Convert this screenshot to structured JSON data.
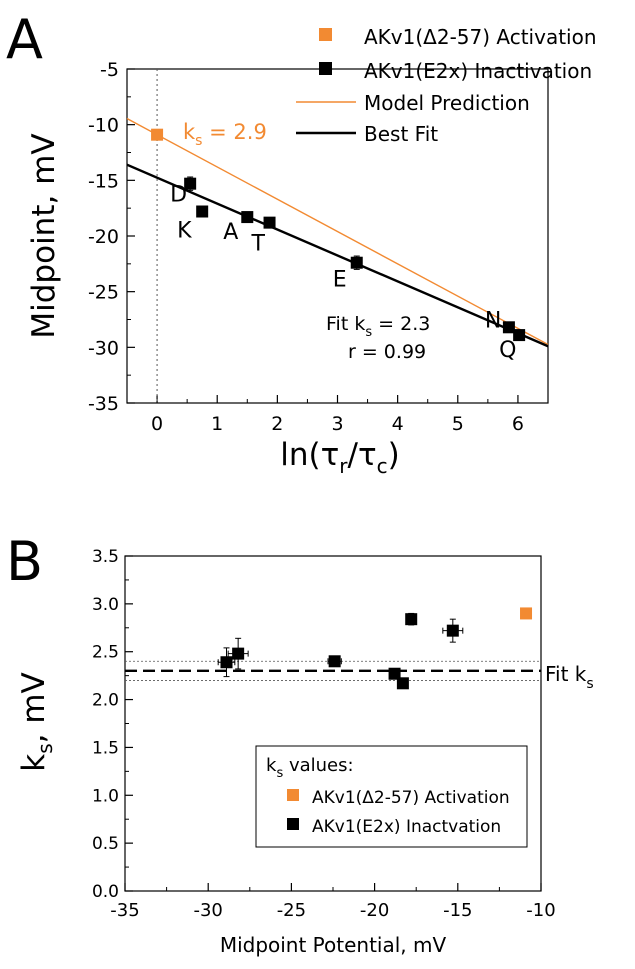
{
  "colors": {
    "activation": "#f28a32",
    "inactivation": "#000000",
    "model": "#f28a32",
    "fit": "#000000"
  },
  "chart_data": [
    {
      "panel": "A",
      "type": "scatter",
      "xlabel_main": "ln(",
      "xlabel_tau1": "τ",
      "xlabel_sub1": "r",
      "xlabel_slash": "/",
      "xlabel_tau2": "τ",
      "xlabel_sub2": "c",
      "xlabel_close": ")",
      "ylabel": "Midpoint, mV",
      "xlim": [
        -0.5,
        6.5
      ],
      "ylim": [
        -35,
        -5
      ],
      "xticks": [
        0,
        1,
        2,
        3,
        4,
        5,
        6
      ],
      "yticks": [
        -35,
        -30,
        -25,
        -20,
        -15,
        -10,
        -5
      ],
      "legend": [
        {
          "label": "AKv1(Δ2-57) Activation",
          "kind": "square",
          "color": "#f28a32"
        },
        {
          "label": "AKv1(E2x) Inactivation",
          "kind": "square",
          "color": "#000000"
        },
        {
          "label": "Model Prediction",
          "kind": "line",
          "color": "#f28a32"
        },
        {
          "label": "Best Fit",
          "kind": "line",
          "color": "#000000"
        }
      ],
      "vline_x": 0,
      "series": [
        {
          "name": "AKv1(Δ2-57) Activation",
          "color": "#f28a32",
          "points": [
            {
              "x": 0,
              "y": -10.9,
              "label": ""
            }
          ]
        },
        {
          "name": "AKv1(E2x) Inactivation",
          "color": "#000000",
          "points": [
            {
              "x": 0.55,
              "y": -15.3,
              "yerr": 0.6,
              "label": "D"
            },
            {
              "x": 0.75,
              "y": -17.8,
              "yerr": 0,
              "label": "K"
            },
            {
              "x": 1.5,
              "y": -18.3,
              "yerr": 0.3,
              "label": "A"
            },
            {
              "x": 1.87,
              "y": -18.8,
              "yerr": 0.3,
              "label": "T"
            },
            {
              "x": 3.32,
              "y": -22.4,
              "yerr": 0.6,
              "label": "E"
            },
            {
              "x": 5.85,
              "y": -28.2,
              "yerr": 0.4,
              "label": "N"
            },
            {
              "x": 6.02,
              "y": -28.9,
              "yerr": 0.3,
              "label": "Q"
            }
          ]
        }
      ],
      "lines": [
        {
          "name": "Model Prediction",
          "color": "#f28a32",
          "x": [
            -0.5,
            6.5
          ],
          "y": [
            -9.45,
            -29.75
          ],
          "width": 1.4
        },
        {
          "name": "Best Fit",
          "color": "#000000",
          "x": [
            -0.5,
            6.5
          ],
          "y": [
            -13.6,
            -29.9
          ],
          "width": 2.4
        }
      ],
      "annotations": {
        "ks_main": "k",
        "ks_sub": "s",
        "ks_value": " = 2.9",
        "fit_main": "Fit k",
        "fit_sub": "s",
        "fit_value": " = 2.3",
        "r_text": "r = 0.99"
      }
    },
    {
      "panel": "B",
      "type": "scatter",
      "xlabel": "Midpoint Potential, mV",
      "ylabel_main": "k",
      "ylabel_sub": "s",
      "ylabel_rest": ", mV",
      "xlim": [
        -35,
        -10
      ],
      "ylim": [
        0.0,
        3.5
      ],
      "xticks": [
        -35,
        -30,
        -25,
        -20,
        -15,
        -10
      ],
      "yticks": [
        0.0,
        0.5,
        1.0,
        1.5,
        2.0,
        2.5,
        3.0,
        3.5
      ],
      "ytick_labels": [
        "0.0",
        "0.5",
        "1.0",
        "1.5",
        "2.0",
        "2.5",
        "3.0",
        "3.5"
      ],
      "fit_ks": 2.3,
      "fit_band": [
        2.2,
        2.4
      ],
      "fit_label_main": "Fit k",
      "fit_label_sub": "s",
      "legend_title_main": "k",
      "legend_title_sub": "s",
      "legend_title_rest": " values:",
      "legend": [
        {
          "label": "AKv1(Δ2-57) Activation",
          "color": "#f28a32"
        },
        {
          "label": "AKv1(E2x) Inactvation",
          "color": "#000000"
        }
      ],
      "series": [
        {
          "name": "AKv1(Δ2-57) Activation",
          "color": "#f28a32",
          "points": [
            {
              "x": -10.9,
              "y": 2.9,
              "xerr": 0,
              "yerr": 0
            }
          ]
        },
        {
          "name": "AKv1(E2x) Inactvation",
          "color": "#000000",
          "points": [
            {
              "x": -28.9,
              "y": 2.39,
              "xerr": 0.5,
              "yerr": 0.15
            },
            {
              "x": -28.2,
              "y": 2.48,
              "xerr": 0.6,
              "yerr": 0.16
            },
            {
              "x": -22.4,
              "y": 2.4,
              "xerr": 0.4,
              "yerr": 0.05
            },
            {
              "x": -18.8,
              "y": 2.27,
              "xerr": 0.3,
              "yerr": 0.05
            },
            {
              "x": -18.3,
              "y": 2.17,
              "xerr": 0.3,
              "yerr": 0.05
            },
            {
              "x": -17.8,
              "y": 2.84,
              "xerr": 0.3,
              "yerr": 0.06
            },
            {
              "x": -15.3,
              "y": 2.72,
              "xerr": 0.6,
              "yerr": 0.12
            }
          ]
        }
      ]
    }
  ],
  "panel_letters": {
    "a": "A",
    "b": "B"
  }
}
